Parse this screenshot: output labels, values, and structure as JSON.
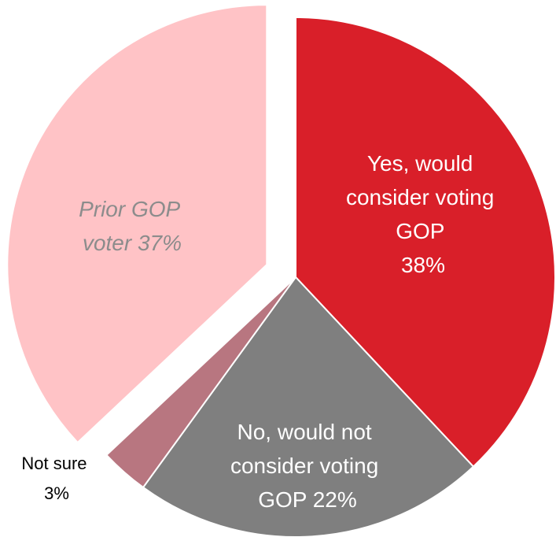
{
  "chart_data": {
    "type": "pie",
    "title": "",
    "slices": [
      {
        "label_lines": [
          "Yes, would",
          "consider voting",
          "GOP",
          "38%"
        ],
        "value": 38,
        "color": "#d91f29",
        "exploded": false
      },
      {
        "label_lines": [
          "No, would not",
          "consider voting",
          "GOP 22%"
        ],
        "value": 22,
        "color": "#7f7f7f",
        "exploded": false
      },
      {
        "label_lines": [
          "Not sure",
          "3%"
        ],
        "value": 3,
        "color": "#b87680",
        "exploded": false
      },
      {
        "label_lines": [
          "Prior GOP",
          "voter 37%"
        ],
        "value": 37,
        "color": "#ffc3c6",
        "exploded": true
      }
    ]
  }
}
